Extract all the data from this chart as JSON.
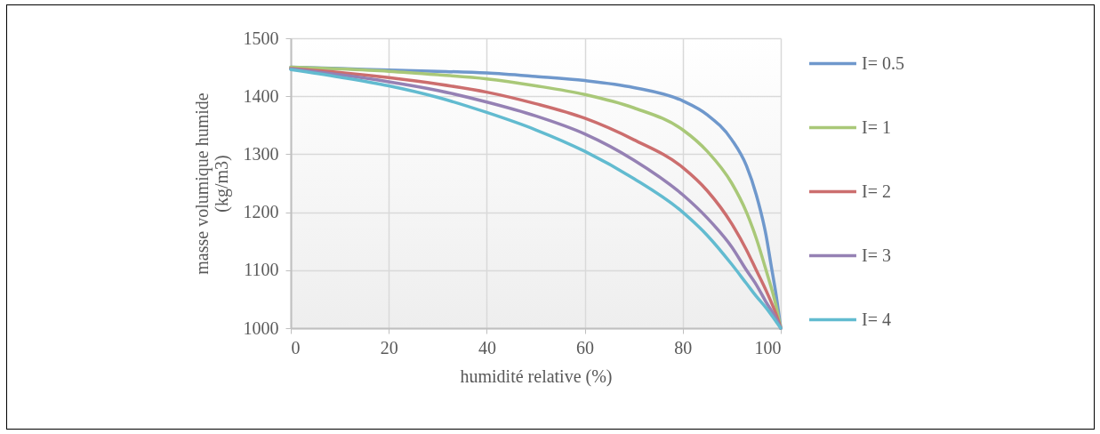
{
  "chart_data": {
    "type": "line",
    "xlabel": "humidité relative (%)",
    "ylabel": "masse volumique humide\n(kg/m3)",
    "xlim": [
      0,
      100
    ],
    "xticks": [
      0,
      20,
      40,
      60,
      80,
      100
    ],
    "ylim": [
      1000,
      1500
    ],
    "yticks": [
      1000,
      1100,
      1200,
      1300,
      1400,
      1500
    ],
    "grid": true,
    "legend": "right",
    "line_style": "solid",
    "series": [
      {
        "name": "I= 0.5",
        "color": "#6f98cc",
        "x": [
          0,
          10,
          20,
          30,
          40,
          50,
          60,
          70,
          80,
          85,
          90,
          93,
          95,
          97,
          98,
          99,
          100
        ],
        "values": [
          1450,
          1448,
          1445,
          1443,
          1440,
          1434,
          1427,
          1415,
          1392,
          1368,
          1325,
          1280,
          1230,
          1160,
          1110,
          1060,
          1000
        ]
      },
      {
        "name": "I= 1",
        "color": "#a9c878",
        "x": [
          0,
          10,
          20,
          30,
          40,
          50,
          60,
          70,
          80,
          85,
          90,
          93,
          95,
          97,
          99,
          100
        ],
        "values": [
          1450,
          1447,
          1443,
          1437,
          1430,
          1418,
          1403,
          1380,
          1342,
          1305,
          1250,
          1200,
          1155,
          1100,
          1040,
          1000
        ]
      },
      {
        "name": "I= 2",
        "color": "#cc6e6e",
        "x": [
          0,
          10,
          20,
          30,
          40,
          50,
          60,
          70,
          80,
          85,
          90,
          93,
          95,
          97,
          99,
          100
        ],
        "values": [
          1448,
          1441,
          1432,
          1421,
          1407,
          1387,
          1362,
          1325,
          1277,
          1237,
          1180,
          1135,
          1100,
          1065,
          1025,
          1000
        ]
      },
      {
        "name": "I= 3",
        "color": "#9581b4",
        "x": [
          0,
          10,
          20,
          30,
          40,
          50,
          60,
          70,
          80,
          85,
          90,
          93,
          95,
          97,
          99,
          100
        ],
        "values": [
          1447,
          1437,
          1425,
          1410,
          1390,
          1366,
          1335,
          1290,
          1230,
          1190,
          1140,
          1100,
          1075,
          1045,
          1017,
          1000
        ]
      },
      {
        "name": "I= 4",
        "color": "#62bbd0",
        "x": [
          0,
          10,
          20,
          30,
          40,
          50,
          60,
          70,
          80,
          85,
          90,
          93,
          95,
          97,
          99,
          100
        ],
        "values": [
          1446,
          1433,
          1418,
          1398,
          1372,
          1342,
          1305,
          1258,
          1200,
          1160,
          1110,
          1077,
          1055,
          1035,
          1012,
          1000
        ]
      }
    ]
  }
}
